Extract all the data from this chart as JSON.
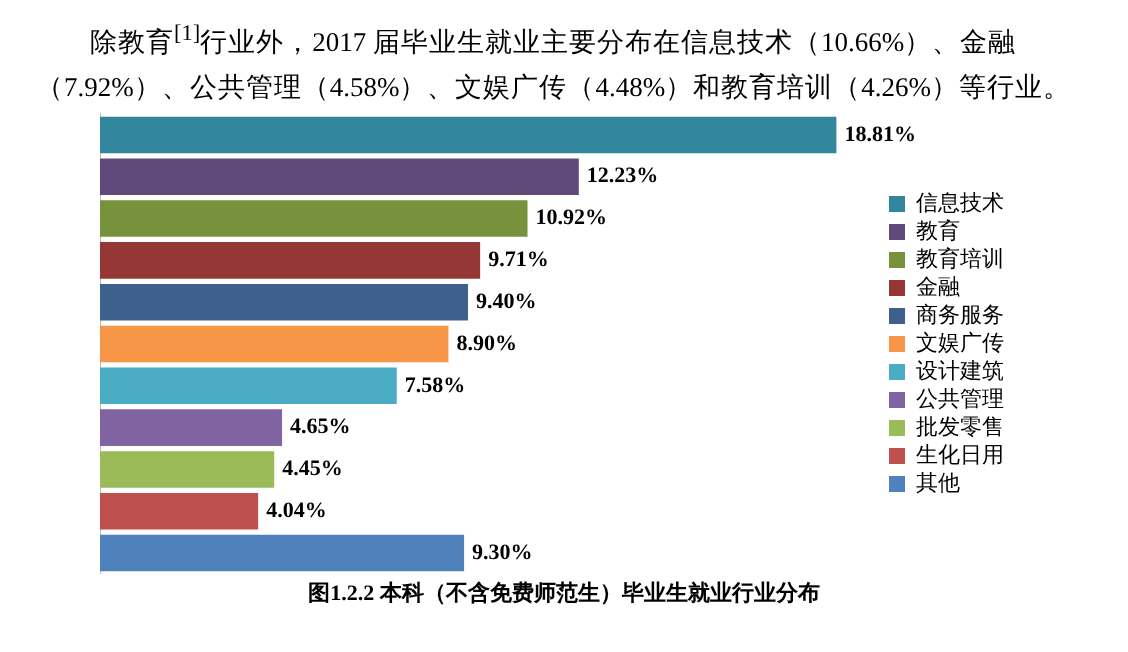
{
  "chart_data": {
    "type": "bar",
    "orientation": "horizontal",
    "stacked": true,
    "title": "图1.2.2 本科（不含免费师范生）毕业生就业行业分布",
    "annotations": [
      "除教育$^{[1]}$行业外，2017 届毕业生就业主要分布在信息技术（10.66%）、金融（7.92%）、公共管理（4.58%）、文娱广传（4.48%）和教育培训（4.26%）等行业。"
    ],
    "categories": [
      null,
      null,
      null,
      null,
      null,
      null,
      null,
      null,
      null,
      null,
      null
    ],
    "series": [
      {
        "name": "信息技术",
        "color": "#31859c",
        "values": [
          18.81,
          null,
          null,
          null,
          null,
          null,
          null,
          null,
          null,
          null,
          null
        ],
        "value_labels": [
          "18.81%",
          null,
          null,
          null,
          null,
          null,
          null,
          null,
          null,
          null,
          null
        ]
      },
      {
        "name": "教育",
        "color": "#604a7b",
        "values": [
          null,
          12.23,
          null,
          null,
          null,
          null,
          null,
          null,
          null,
          null,
          null
        ],
        "value_labels": [
          null,
          "12.23%",
          null,
          null,
          null,
          null,
          null,
          null,
          null,
          null,
          null
        ]
      },
      {
        "name": "教育培训",
        "color": "#76923c",
        "values": [
          null,
          null,
          10.92,
          null,
          null,
          null,
          null,
          null,
          null,
          null,
          null
        ],
        "value_labels": [
          null,
          null,
          "10.92%",
          null,
          null,
          null,
          null,
          null,
          null,
          null,
          null
        ]
      },
      {
        "name": "金融",
        "color": "#953735",
        "values": [
          null,
          null,
          null,
          9.71,
          null,
          null,
          null,
          null,
          null,
          null,
          null
        ],
        "value_labels": [
          null,
          null,
          null,
          "9.71%",
          null,
          null,
          null,
          null,
          null,
          null,
          null
        ]
      },
      {
        "name": "商务服务",
        "color": "#3d5f8e",
        "values": [
          null,
          null,
          null,
          null,
          9.4,
          null,
          null,
          null,
          null,
          null,
          null
        ],
        "value_labels": [
          null,
          null,
          null,
          null,
          "9.40%",
          null,
          null,
          null,
          null,
          null,
          null
        ]
      },
      {
        "name": "文娱广传",
        "color": "#f79646",
        "values": [
          null,
          null,
          null,
          null,
          null,
          8.9,
          null,
          null,
          null,
          null,
          null
        ],
        "value_labels": [
          null,
          null,
          null,
          null,
          null,
          "8.90%",
          null,
          null,
          null,
          null,
          null
        ]
      },
      {
        "name": "设计建筑",
        "color": "#4bacc6",
        "values": [
          null,
          null,
          null,
          null,
          null,
          null,
          7.58,
          null,
          null,
          null,
          null
        ],
        "value_labels": [
          null,
          null,
          null,
          null,
          null,
          null,
          "7.58%",
          null,
          null,
          null,
          null
        ]
      },
      {
        "name": "公共管理",
        "color": "#8064a2",
        "values": [
          null,
          null,
          null,
          null,
          null,
          null,
          null,
          4.65,
          null,
          null,
          null
        ],
        "value_labels": [
          null,
          null,
          null,
          null,
          null,
          null,
          null,
          "4.65%",
          null,
          null,
          null
        ]
      },
      {
        "name": "批发零售",
        "color": "#9bbb59",
        "values": [
          null,
          null,
          null,
          null,
          null,
          null,
          null,
          null,
          4.45,
          null,
          null
        ],
        "value_labels": [
          null,
          null,
          null,
          null,
          null,
          null,
          null,
          null,
          "4.45%",
          null,
          null
        ]
      },
      {
        "name": "生化日用",
        "color": "#c0504d",
        "values": [
          null,
          null,
          null,
          null,
          null,
          null,
          null,
          null,
          null,
          4.04,
          null
        ],
        "value_labels": [
          null,
          null,
          null,
          null,
          null,
          null,
          null,
          null,
          null,
          "4.04%",
          null
        ]
      },
      {
        "name": "其他",
        "color": "#4f81bd",
        "values": [
          null,
          null,
          null,
          null,
          null,
          null,
          null,
          null,
          null,
          null,
          9.3
        ],
        "value_labels": [
          null,
          null,
          null,
          null,
          null,
          null,
          null,
          null,
          null,
          null,
          "9.30%"
        ]
      }
    ],
    "legend": "right",
    "grid": false,
    "tick_labels": false
  }
}
